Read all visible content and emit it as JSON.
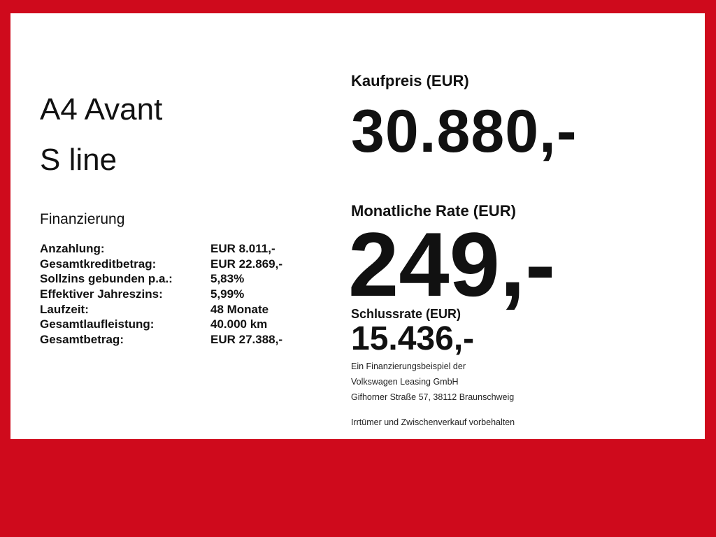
{
  "colors": {
    "background": "#cf0a1c",
    "panel": "#ffffff",
    "text": "#111111"
  },
  "model": {
    "line1": "A4 Avant",
    "line2": "S line"
  },
  "financing": {
    "heading": "Finanzierung",
    "rows": [
      {
        "label": "Anzahlung:",
        "value": "EUR 8.011,-"
      },
      {
        "label": "Gesamtkreditbetrag:",
        "value": "EUR 22.869,-"
      },
      {
        "label": "Sollzins gebunden p.a.:",
        "value": "5,83%"
      },
      {
        "label": "Effektiver Jahreszins:",
        "value": "5,99%"
      },
      {
        "label": "Laufzeit:",
        "value": "48 Monate"
      },
      {
        "label": "Gesamtlaufleistung:",
        "value": "40.000 km"
      },
      {
        "label": "Gesamtbetrag:",
        "value": "EUR 27.388,-"
      }
    ]
  },
  "price": {
    "label": "Kaufpreis (EUR)",
    "value": "30.880,-"
  },
  "monthly": {
    "label": "Monatliche Rate (EUR)",
    "value": "249,-"
  },
  "final": {
    "label": "Schlussrate (EUR)",
    "value": "15.436,-"
  },
  "notes": [
    "Ein Finanzierungsbeispiel der",
    "Volkswagen Leasing GmbH",
    "Gifhorner Straße 57, 38112 Braunschweig",
    "Irrtümer und Zwischenverkauf vorbehalten"
  ]
}
